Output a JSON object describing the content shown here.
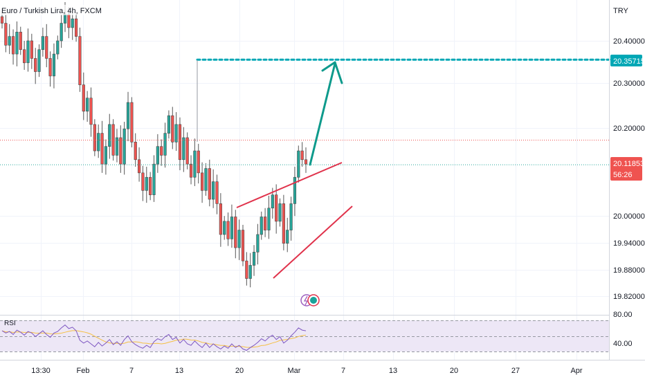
{
  "header": {
    "symbol_title": "Euro / Turkish Lira, 4h, FXCM",
    "currency": "TRY"
  },
  "price_axis": {
    "ticks": [
      "20.40000",
      "20.30000",
      "20.20000",
      "20.00000",
      "19.94000",
      "19.88000",
      "19.82000"
    ]
  },
  "tags": {
    "target": "20.35715",
    "current_price": "20.11853",
    "countdown": "56:26"
  },
  "rsi": {
    "label": "RSI",
    "ticks": [
      "80.00",
      "40.00"
    ]
  },
  "time_axis": {
    "labels": [
      "13:30",
      "Feb",
      "7",
      "13",
      "20",
      "Mar",
      "7",
      "13",
      "20",
      "27",
      "Apr"
    ]
  },
  "colors": {
    "up": "#26a69a",
    "down": "#ef5350",
    "candle": "#4a4a4a",
    "target_line": "#00a7b5",
    "arrow": "#0e9a8c",
    "wedge": "#e0324b",
    "price_tag": "#ef5350",
    "target_tag": "#00a7b5",
    "rsi_line": "#7e57c2",
    "rsi_ma": "#f5c044",
    "rsi_band": "#ede7f6"
  },
  "chart_data": {
    "type": "candlestick",
    "symbol": "EUR/TRY",
    "timeframe": "4h",
    "ylim": [
      19.79,
      20.47
    ],
    "close_series": [
      20.44,
      20.39,
      20.41,
      20.37,
      20.42,
      20.38,
      20.35,
      20.4,
      20.36,
      20.33,
      20.38,
      20.41,
      20.36,
      20.32,
      20.37,
      20.4,
      20.44,
      20.46,
      20.43,
      20.45,
      20.41,
      20.3,
      20.24,
      20.27,
      20.21,
      20.15,
      20.19,
      20.12,
      20.16,
      20.21,
      20.14,
      20.18,
      20.12,
      20.2,
      20.26,
      20.17,
      20.13,
      20.1,
      20.06,
      20.09,
      20.05,
      20.12,
      20.16,
      20.14,
      20.19,
      20.23,
      20.17,
      20.21,
      20.13,
      20.18,
      20.12,
      20.09,
      20.15,
      20.1,
      20.06,
      20.11,
      20.04,
      20.08,
      20.03,
      19.96,
      19.99,
      19.95,
      20.0,
      19.93,
      19.97,
      19.9,
      19.86,
      19.89,
      19.92,
      19.96,
      20.0,
      19.97,
      20.02,
      20.05,
      19.99,
      20.03,
      19.94,
      19.97,
      20.03,
      20.09,
      20.15,
      20.13,
      20.12
    ],
    "target_price": 20.35715,
    "current_price": 20.11853,
    "rsi_ylim": [
      15,
      95
    ],
    "rsi_band": [
      30,
      70
    ],
    "rsi_series": [
      58,
      55,
      57,
      53,
      59,
      56,
      52,
      57,
      55,
      50,
      54,
      58,
      53,
      49,
      55,
      57,
      62,
      66,
      61,
      63,
      58,
      45,
      41,
      44,
      40,
      36,
      42,
      37,
      41,
      46,
      39,
      43,
      38,
      46,
      51,
      43,
      39,
      36,
      34,
      38,
      35,
      43,
      47,
      45,
      50,
      53,
      46,
      49,
      41,
      46,
      40,
      38,
      44,
      39,
      35,
      41,
      35,
      40,
      36,
      33,
      37,
      34,
      40,
      35,
      38,
      33,
      31,
      35,
      38,
      42,
      47,
      44,
      49,
      52,
      46,
      50,
      41,
      45,
      51,
      56,
      62,
      59,
      58
    ]
  }
}
